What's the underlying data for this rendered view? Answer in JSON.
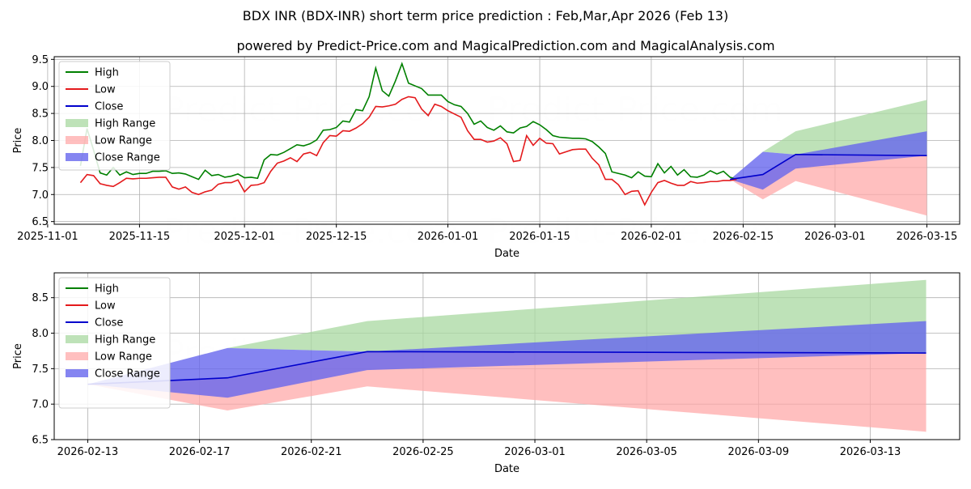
{
  "title": "BDX INR (BDX-INR) short term price prediction : Feb,Mar,Apr 2026 (Feb 13)",
  "subtitle": "powered by Predict-Price.com and MagicalPrediction.com and MagicalAnalysis.com",
  "watermark": "Predict-Price.com",
  "colors": {
    "high": "#008000",
    "low": "#e41a1c",
    "close": "#0000cc",
    "high_range": "#a8d8a0",
    "low_range": "#ffaaaa",
    "close_range": "#6666ee"
  },
  "chart_data": [
    {
      "type": "line",
      "name": "history-and-forecast",
      "xlabel": "Date",
      "ylabel": "Price",
      "xlim": [
        "2025-11-02",
        "2026-03-20"
      ],
      "ylim": [
        6.45,
        9.55
      ],
      "x_ticks": [
        "2025-11-01",
        "2025-11-15",
        "2025-12-01",
        "2025-12-15",
        "2026-01-01",
        "2026-01-15",
        "2026-02-01",
        "2026-02-15",
        "2026-03-01",
        "2026-03-15"
      ],
      "y_ticks": [
        "6.5",
        "7.0",
        "7.5",
        "8.0",
        "8.5",
        "9.0",
        "9.5"
      ],
      "legend": [
        "High",
        "Low",
        "Close",
        "High Range",
        "Low Range",
        "Close Range"
      ],
      "series": [
        {
          "name": "High",
          "start": "2025-11-06",
          "values": [
            7.53,
            8.22,
            7.82,
            7.4,
            7.36,
            7.5,
            7.36,
            7.42,
            7.37,
            7.39,
            7.39,
            7.43,
            7.43,
            7.44,
            7.39,
            7.4,
            7.38,
            7.33,
            7.28,
            7.45,
            7.35,
            7.37,
            7.32,
            7.34,
            7.38,
            7.31,
            7.32,
            7.3,
            7.64,
            7.74,
            7.73,
            7.78,
            7.85,
            7.92,
            7.9,
            7.94,
            8.01,
            8.19,
            8.2,
            8.24,
            8.36,
            8.34,
            8.57,
            8.55,
            8.81,
            9.34,
            8.92,
            8.82,
            9.1,
            9.42,
            9.06,
            9.01,
            8.96,
            8.84,
            8.84,
            8.84,
            8.72,
            8.66,
            8.63,
            8.5,
            8.3,
            8.36,
            8.24,
            8.19,
            8.27,
            8.16,
            8.14,
            8.23,
            8.26,
            8.35,
            8.29,
            8.2,
            8.09,
            8.06,
            8.05,
            8.04,
            8.04,
            8.03,
            7.98,
            7.88,
            7.76,
            7.42,
            7.39,
            7.36,
            7.31,
            7.42,
            7.34,
            7.33,
            7.57,
            7.4,
            7.52,
            7.36,
            7.46,
            7.33,
            7.32,
            7.36,
            7.44,
            7.38,
            7.43,
            7.32,
            7.28
          ]
        },
        {
          "name": "Low",
          "start": "2025-11-06",
          "values": [
            7.22,
            7.37,
            7.35,
            7.2,
            7.17,
            7.15,
            7.22,
            7.3,
            7.29,
            7.3,
            7.3,
            7.31,
            7.32,
            7.32,
            7.14,
            7.1,
            7.14,
            7.04,
            7.0,
            7.05,
            7.08,
            7.19,
            7.22,
            7.22,
            7.27,
            7.05,
            7.17,
            7.18,
            7.22,
            7.43,
            7.58,
            7.62,
            7.68,
            7.61,
            7.75,
            7.78,
            7.72,
            7.96,
            8.09,
            8.08,
            8.18,
            8.17,
            8.23,
            8.31,
            8.43,
            8.63,
            8.62,
            8.64,
            8.67,
            8.76,
            8.81,
            8.79,
            8.58,
            8.46,
            8.67,
            8.63,
            8.55,
            8.49,
            8.43,
            8.18,
            8.02,
            8.02,
            7.97,
            7.99,
            8.05,
            7.94,
            7.61,
            7.63,
            8.09,
            7.91,
            8.04,
            7.95,
            7.94,
            7.75,
            7.79,
            7.83,
            7.84,
            7.84,
            7.67,
            7.55,
            7.28,
            7.28,
            7.18,
            7.0,
            7.06,
            7.07,
            6.81,
            7.04,
            7.22,
            7.26,
            7.21,
            7.17,
            7.17,
            7.24,
            7.21,
            7.22,
            7.24,
            7.24,
            7.26,
            7.26,
            7.28
          ]
        }
      ],
      "forecast": {
        "dates": [
          "2026-02-13",
          "2026-02-18",
          "2026-02-23",
          "2026-03-15"
        ],
        "close": [
          7.28,
          7.37,
          7.74,
          7.72
        ],
        "high_range": [
          [
            7.28,
            7.28
          ],
          [
            7.79,
            7.79
          ],
          [
            7.74,
            8.17
          ],
          [
            7.72,
            8.75
          ]
        ],
        "low_range": [
          [
            7.28,
            7.28
          ],
          [
            6.91,
            7.37
          ],
          [
            7.25,
            7.74
          ],
          [
            6.61,
            7.72
          ]
        ],
        "close_range": [
          [
            7.28,
            7.28
          ],
          [
            7.09,
            7.79
          ],
          [
            7.48,
            7.74
          ],
          [
            7.72,
            8.17
          ]
        ]
      }
    },
    {
      "type": "line",
      "name": "forecast-detail",
      "xlabel": "Date",
      "ylabel": "Price",
      "xlim": [
        "2026-02-11.8",
        "2026-03-16.2"
      ],
      "ylim": [
        6.5,
        8.85
      ],
      "x_ticks": [
        "2026-02-13",
        "2026-02-17",
        "2026-02-21",
        "2026-02-25",
        "2026-03-01",
        "2026-03-05",
        "2026-03-09",
        "2026-03-13"
      ],
      "y_ticks": [
        "6.5",
        "7.0",
        "7.5",
        "8.0",
        "8.5"
      ],
      "legend": [
        "High",
        "Low",
        "Close",
        "High Range",
        "Low Range",
        "Close Range"
      ]
    }
  ]
}
